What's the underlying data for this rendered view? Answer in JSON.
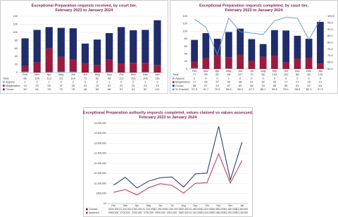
{
  "chart_data": [
    {
      "type": "bar",
      "stacked": true,
      "title": "Exceptional Preparation requests received, by court tier,",
      "subtitle": "February 2023 to January 2024",
      "categories": [
        "Feb",
        "Mar",
        "Apr",
        "May",
        "Jun",
        "Jul",
        "Aug",
        "Sep",
        "Oct",
        "Nov",
        "Dec",
        "Jan"
      ],
      "totals_label": "Total",
      "totals": [
        85,
        106,
        113,
        111,
        110,
        72,
        82,
        98,
        113,
        105,
        106,
        130
      ],
      "series": [
        {
          "name": "Appeal",
          "color": "#8fa9c9",
          "values": [
            2,
            0,
            1,
            2,
            2,
            0,
            0,
            1,
            0,
            0,
            1,
            0
          ]
        },
        {
          "name": "Magistrates",
          "color": "#9b1b3f",
          "values": [
            14,
            25,
            59,
            37,
            30,
            23,
            19,
            31,
            22,
            24,
            23,
            19
          ]
        },
        {
          "name": "Crown",
          "color": "#1f2d6b",
          "values": [
            69,
            81,
            53,
            72,
            78,
            49,
            63,
            66,
            91,
            81,
            82,
            111
          ]
        }
      ],
      "ylim": [
        0,
        140
      ],
      "yticks": [
        0,
        20,
        40,
        60,
        80,
        100,
        120,
        140
      ],
      "grid": true
    },
    {
      "type": "bar",
      "stacked": true,
      "title": "Exceptional Preparation requests completed, by court tier,",
      "subtitle": "February 2023 to January 2024",
      "categories": [
        "Feb",
        "Mar",
        "Apr",
        "May",
        "Jun",
        "Jul",
        "Aug",
        "Sep",
        "Oct",
        "Nov",
        "Dec",
        "Jan"
      ],
      "totals_label": "Total",
      "totals": [
        77,
        95,
        80,
        98,
        107,
        79,
        66,
        103,
        102,
        88,
        80,
        125
      ],
      "series": [
        {
          "name": "Appeal",
          "color": "#8fa9c9",
          "values": [
            2,
            0,
            0,
            1,
            0,
            0,
            0,
            0,
            0,
            0,
            0,
            0
          ]
        },
        {
          "name": "Magistrates",
          "color": "#9b1b3f",
          "values": [
            17,
            28,
            37,
            30,
            38,
            21,
            32,
            35,
            17,
            27,
            28,
            14
          ]
        },
        {
          "name": "Crown",
          "color": "#1f2d6b",
          "values": [
            58,
            67,
            43,
            67,
            69,
            58,
            34,
            68,
            85,
            61,
            52,
            111
          ]
        },
        {
          "name": "% Granted",
          "color": "#5b8fd6",
          "type": "line",
          "axis": "y2",
          "values": [
            97.8,
            91.7,
            70.9,
            98.6,
            88.2,
            87.2,
            86.1,
            96.6,
            99.1,
            98.5,
            82.3,
            97.5
          ]
        }
      ],
      "ylim": [
        0,
        140
      ],
      "yticks": [
        0,
        20,
        40,
        60,
        80,
        100,
        120,
        140
      ],
      "y2lim": [
        60,
        100
      ],
      "y2ticks": [
        {
          "value": 60,
          "label": "60.0"
        },
        {
          "value": 65,
          "label": "65.0"
        },
        {
          "value": 70,
          "label": "70.0"
        },
        {
          "value": 75,
          "label": "75.0"
        },
        {
          "value": 80,
          "label": "80.0"
        },
        {
          "value": 85,
          "label": "85.0"
        },
        {
          "value": 90,
          "label": "90.0"
        },
        {
          "value": 95,
          "label": "95.0"
        },
        {
          "value": 100,
          "label": "100.0"
        }
      ],
      "grid": true
    },
    {
      "type": "line",
      "title": "Exceptional Preparation authority requests completed, values claimed vs values assessed.",
      "subtitle": "February 2023 to January 2024",
      "categories": [
        "Feb",
        "Mar",
        "Apr",
        "May",
        "Jun",
        "Jul",
        "Aug",
        "Sep",
        "Oct",
        "Nov",
        "Dec",
        "Jan"
      ],
      "series": [
        {
          "name": "Claimed",
          "color": "#1f2d6b",
          "values": [
            920000,
            1310000,
            780000,
            1120000,
            1290000,
            1330000,
            820000,
            1480000,
            1520000,
            3850000,
            1180000,
            3060000
          ],
          "value_labels": [
            "£920,000",
            "£1,310,000",
            "£780,000",
            "£1,120,000",
            "£1,290,000",
            "£1,330,000",
            "£820,000",
            "£1,480,000",
            "£1,520,000",
            "£3,850,000",
            "£1,180,000",
            "£3,060,000"
          ]
        },
        {
          "name": "Assessed",
          "color": "#c0304a",
          "values": [
            560000,
            700000,
            430000,
            790000,
            990000,
            910000,
            520000,
            1010000,
            1040000,
            2480000,
            1020000,
            2150000
          ],
          "value_labels": [
            "£560,000",
            "£700,000",
            "£430,000",
            "£790,000",
            "£990,000",
            "£910,000",
            "£520,000",
            "£1,010,000",
            "£1,040,000",
            "£2,480,000",
            "£1,020,000",
            "£2,150,000"
          ]
        }
      ],
      "ylim": [
        0,
        4000000
      ],
      "yticks": [
        {
          "value": 0,
          "label": "£0"
        },
        {
          "value": 500000,
          "label": "£500,000"
        },
        {
          "value": 1000000,
          "label": "£1,000,000"
        },
        {
          "value": 1500000,
          "label": "£1,500,000"
        },
        {
          "value": 2000000,
          "label": "£2,000,000"
        },
        {
          "value": 2500000,
          "label": "£2,500,000"
        },
        {
          "value": 3000000,
          "label": "£3,000,000"
        },
        {
          "value": 3500000,
          "label": "£3,500,000"
        },
        {
          "value": 4000000,
          "label": "£4,000,000"
        }
      ],
      "grid": true
    }
  ]
}
